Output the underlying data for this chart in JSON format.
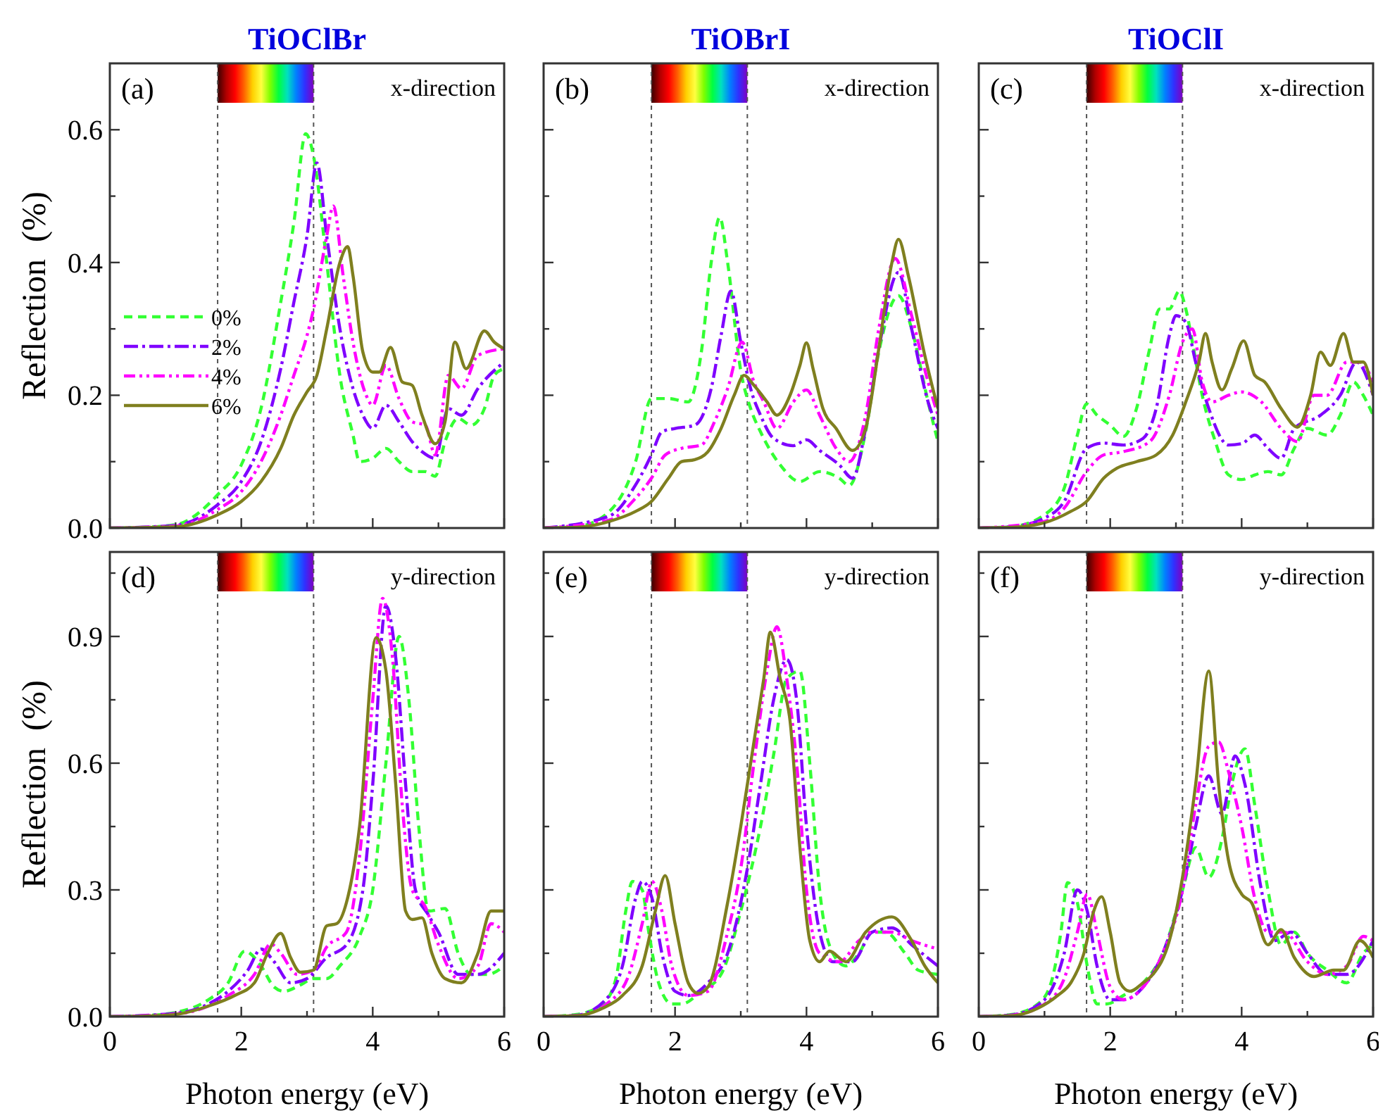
{
  "chart_data": [
    {
      "type": "line",
      "title": "TiOClBr",
      "ylabel": "Reflection  (%)",
      "annotations": [
        "(a)",
        "x-direction"
      ],
      "xlim": [
        0,
        6
      ],
      "ylim": [
        0,
        0.7
      ],
      "xticks": [
        0,
        {
          "value": 1,
          "label": null
        },
        2,
        {
          "value": 3,
          "label": null
        },
        4,
        {
          "value": 5,
          "label": null
        },
        6
      ],
      "yticks": [
        {
          "value": 0,
          "label": "0.0"
        },
        {
          "value": 0.1,
          "label": null
        },
        0.2,
        {
          "value": 0.3,
          "label": null
        },
        0.4,
        {
          "value": 0.5,
          "label": null
        },
        0.6
      ],
      "tick_labels": "y",
      "legend": "left",
      "grid": false,
      "ref_lines": [
        {
          "axis": "x",
          "value": 1.64,
          "color": "#555555",
          "line_style": "dashed"
        },
        {
          "axis": "x",
          "value": 3.1,
          "color": "#555555",
          "line_style": "dashed"
        }
      ],
      "series": [
        {
          "name": "0%",
          "color": "#33ff33",
          "line_style": "dashed",
          "x": [
            0,
            0.5,
            1,
            1.64,
            2,
            2.3,
            2.6,
            2.8,
            2.98,
            3.1,
            3.3,
            3.5,
            3.7,
            3.8,
            4,
            4.2,
            4.4,
            4.6,
            4.8,
            4.95,
            5.1,
            5.3,
            5.5,
            5.7,
            5.85,
            6
          ],
          "values": [
            0,
            0.001,
            0.005,
            0.05,
            0.095,
            0.18,
            0.34,
            0.46,
            0.594,
            0.56,
            0.4,
            0.23,
            0.14,
            0.1,
            0.105,
            0.12,
            0.1,
            0.085,
            0.085,
            0.078,
            0.13,
            0.165,
            0.155,
            0.18,
            0.23,
            0.24
          ]
        },
        {
          "name": "2%",
          "color": "#7f00ff",
          "line_style": "dashed",
          "x": [
            0,
            1,
            1.64,
            2,
            2.3,
            2.6,
            2.8,
            3,
            3.15,
            3.3,
            3.5,
            3.7,
            3.85,
            4,
            4.2,
            4.4,
            4.6,
            4.75,
            4.95,
            5.15,
            5.35,
            5.6,
            6
          ],
          "values": [
            0,
            0.004,
            0.035,
            0.07,
            0.13,
            0.24,
            0.34,
            0.44,
            0.55,
            0.44,
            0.3,
            0.21,
            0.17,
            0.15,
            0.185,
            0.16,
            0.13,
            0.115,
            0.105,
            0.18,
            0.17,
            0.21,
            0.25
          ]
        },
        {
          "name": "4%",
          "color": "#ff00ff",
          "line_style": "dashed",
          "x": [
            0,
            1,
            1.64,
            2,
            2.3,
            2.6,
            2.8,
            3,
            3.1,
            3.3,
            3.4,
            3.55,
            3.7,
            3.9,
            4,
            4.2,
            4.4,
            4.6,
            4.8,
            4.95,
            5.15,
            5.35,
            5.6,
            6
          ],
          "values": [
            0,
            0.003,
            0.028,
            0.055,
            0.1,
            0.17,
            0.23,
            0.29,
            0.33,
            0.44,
            0.485,
            0.38,
            0.28,
            0.2,
            0.185,
            0.245,
            0.195,
            0.16,
            0.155,
            0.11,
            0.23,
            0.21,
            0.26,
            0.27
          ]
        },
        {
          "name": "6%",
          "color": "#7f7f1f",
          "line_style": "solid",
          "x": [
            0,
            1,
            1.64,
            2,
            2.3,
            2.6,
            2.8,
            3,
            3.15,
            3.3,
            3.5,
            3.62,
            3.7,
            3.85,
            4,
            4.1,
            4.27,
            4.45,
            4.6,
            4.75,
            4.95,
            5.1,
            5.25,
            5.42,
            5.7,
            5.85,
            6
          ],
          "values": [
            0,
            0.002,
            0.02,
            0.04,
            0.07,
            0.12,
            0.17,
            0.205,
            0.23,
            0.3,
            0.4,
            0.424,
            0.38,
            0.265,
            0.235,
            0.235,
            0.272,
            0.22,
            0.215,
            0.17,
            0.127,
            0.16,
            0.28,
            0.24,
            0.297,
            0.28,
            0.27
          ]
        }
      ]
    },
    {
      "type": "line",
      "title": "TiOBrI",
      "annotations": [
        "(b)",
        "x-direction"
      ],
      "xlim": [
        0,
        6
      ],
      "ylim": [
        0,
        0.7
      ],
      "xticks": [
        0,
        {
          "value": 1,
          "label": null
        },
        2,
        {
          "value": 3,
          "label": null
        },
        4,
        {
          "value": 5,
          "label": null
        },
        6
      ],
      "yticks": [
        0,
        {
          "value": 0.1,
          "label": null
        },
        0.2,
        {
          "value": 0.3,
          "label": null
        },
        0.4,
        {
          "value": 0.5,
          "label": null
        },
        0.6
      ],
      "tick_labels": false,
      "grid": false,
      "ref_lines": [
        {
          "axis": "x",
          "value": 1.64,
          "color": "#555555",
          "line_style": "dashed"
        },
        {
          "axis": "x",
          "value": 3.1,
          "color": "#555555",
          "line_style": "dashed"
        }
      ],
      "series": [
        {
          "color": "#33ff33",
          "line_style": "dashed",
          "x": [
            0,
            0.5,
            1,
            1.4,
            1.64,
            1.9,
            2.2,
            2.4,
            2.55,
            2.68,
            2.8,
            3,
            3.15,
            3.3,
            3.6,
            3.9,
            4.2,
            4.5,
            4.65,
            4.9,
            5.1,
            5.4,
            5.6,
            5.85,
            6
          ],
          "values": [
            0,
            0.002,
            0.025,
            0.1,
            0.195,
            0.195,
            0.19,
            0.265,
            0.4,
            0.468,
            0.4,
            0.237,
            0.18,
            0.145,
            0.095,
            0.07,
            0.085,
            0.075,
            0.064,
            0.145,
            0.265,
            0.35,
            0.3,
            0.19,
            0.13
          ]
        },
        {
          "color": "#7f00ff",
          "line_style": "dashed",
          "x": [
            0,
            1,
            1.4,
            1.64,
            1.8,
            2,
            2.3,
            2.55,
            2.7,
            2.85,
            3,
            3.15,
            3.3,
            3.5,
            3.8,
            4,
            4.2,
            4.5,
            4.7,
            4.9,
            5.1,
            5.4,
            5.6,
            5.85,
            6
          ],
          "values": [
            0,
            0.018,
            0.065,
            0.11,
            0.145,
            0.15,
            0.155,
            0.21,
            0.29,
            0.357,
            0.28,
            0.21,
            0.17,
            0.135,
            0.124,
            0.133,
            0.117,
            0.095,
            0.075,
            0.15,
            0.27,
            0.385,
            0.3,
            0.19,
            0.15
          ]
        },
        {
          "color": "#ff00ff",
          "line_style": "dashed",
          "x": [
            0,
            1,
            1.4,
            1.64,
            1.85,
            2.1,
            2.4,
            2.6,
            2.8,
            3.02,
            3.2,
            3.35,
            3.55,
            3.8,
            4,
            4.2,
            4.45,
            4.65,
            4.9,
            5.1,
            5.35,
            5.6,
            5.85,
            6
          ],
          "values": [
            0,
            0.012,
            0.045,
            0.075,
            0.11,
            0.12,
            0.125,
            0.16,
            0.21,
            0.28,
            0.22,
            0.19,
            0.15,
            0.19,
            0.208,
            0.17,
            0.12,
            0.1,
            0.17,
            0.3,
            0.406,
            0.32,
            0.22,
            0.17
          ]
        },
        {
          "color": "#7f7f1f",
          "line_style": "solid",
          "x": [
            0,
            0.5,
            1,
            1.4,
            1.64,
            1.9,
            2.1,
            2.3,
            2.5,
            2.7,
            2.9,
            3.05,
            3.2,
            3.4,
            3.55,
            3.75,
            3.9,
            4,
            4.1,
            4.25,
            4.45,
            4.7,
            4.9,
            5.1,
            5.3,
            5.4,
            5.55,
            5.8,
            6
          ],
          "values": [
            0,
            0.001,
            0.01,
            0.025,
            0.04,
            0.075,
            0.1,
            0.103,
            0.115,
            0.15,
            0.2,
            0.23,
            0.215,
            0.19,
            0.17,
            0.2,
            0.245,
            0.279,
            0.24,
            0.18,
            0.15,
            0.117,
            0.15,
            0.27,
            0.4,
            0.435,
            0.38,
            0.26,
            0.18
          ]
        }
      ]
    },
    {
      "type": "line",
      "title": "TiOClI",
      "annotations": [
        "(c)",
        "x-direction"
      ],
      "xlim": [
        0,
        6
      ],
      "ylim": [
        0,
        0.7
      ],
      "xticks": [
        0,
        {
          "value": 1,
          "label": null
        },
        2,
        {
          "value": 3,
          "label": null
        },
        4,
        {
          "value": 5,
          "label": null
        },
        6
      ],
      "yticks": [
        0,
        {
          "value": 0.1,
          "label": null
        },
        0.2,
        {
          "value": 0.3,
          "label": null
        },
        0.4,
        {
          "value": 0.5,
          "label": null
        },
        0.6
      ],
      "tick_labels": false,
      "grid": false,
      "ref_lines": [
        {
          "axis": "x",
          "value": 1.64,
          "color": "#555555",
          "line_style": "dashed"
        },
        {
          "axis": "x",
          "value": 3.1,
          "color": "#555555",
          "line_style": "dashed"
        }
      ],
      "series": [
        {
          "color": "#33ff33",
          "line_style": "dashed",
          "x": [
            0,
            0.5,
            1,
            1.3,
            1.5,
            1.64,
            1.8,
            2,
            2.2,
            2.4,
            2.6,
            2.75,
            2.9,
            3.05,
            3.15,
            3.25,
            3.4,
            3.6,
            3.8,
            4,
            4.2,
            4.4,
            4.6,
            4.8,
            5,
            5.3,
            5.5,
            5.7,
            5.85,
            6
          ],
          "values": [
            0,
            0.002,
            0.02,
            0.06,
            0.14,
            0.187,
            0.17,
            0.155,
            0.138,
            0.18,
            0.27,
            0.33,
            0.33,
            0.357,
            0.33,
            0.28,
            0.2,
            0.13,
            0.08,
            0.073,
            0.08,
            0.085,
            0.08,
            0.12,
            0.15,
            0.14,
            0.17,
            0.22,
            0.2,
            0.17
          ]
        },
        {
          "color": "#7f00ff",
          "line_style": "dashed",
          "x": [
            0,
            0.5,
            1,
            1.3,
            1.64,
            1.9,
            2.2,
            2.5,
            2.7,
            2.9,
            3,
            3.15,
            3.3,
            3.5,
            3.8,
            4,
            4.2,
            4.4,
            4.6,
            4.8,
            5.2,
            5.5,
            5.75,
            6
          ],
          "values": [
            0,
            0.002,
            0.015,
            0.04,
            0.12,
            0.128,
            0.125,
            0.135,
            0.18,
            0.29,
            0.32,
            0.31,
            0.25,
            0.18,
            0.125,
            0.127,
            0.14,
            0.12,
            0.105,
            0.15,
            0.17,
            0.2,
            0.25,
            0.2
          ]
        },
        {
          "color": "#ff00ff",
          "line_style": "dashed",
          "x": [
            0,
            1,
            1.3,
            1.64,
            1.9,
            2.2,
            2.6,
            2.9,
            3.1,
            3.25,
            3.4,
            3.55,
            3.8,
            4,
            4.3,
            4.6,
            4.85,
            5.1,
            5.3,
            5.6,
            5.8,
            6
          ],
          "values": [
            0,
            0.01,
            0.03,
            0.085,
            0.11,
            0.115,
            0.13,
            0.2,
            0.28,
            0.3,
            0.22,
            0.19,
            0.2,
            0.205,
            0.19,
            0.15,
            0.13,
            0.2,
            0.2,
            0.25,
            0.25,
            0.22
          ]
        },
        {
          "color": "#7f7f1f",
          "line_style": "solid",
          "x": [
            0,
            0.5,
            1,
            1.4,
            1.64,
            1.9,
            2.1,
            2.4,
            2.7,
            2.95,
            3.15,
            3.35,
            3.45,
            3.55,
            3.7,
            3.85,
            4.03,
            4.2,
            4.35,
            4.6,
            4.85,
            5.05,
            5.2,
            5.35,
            5.55,
            5.7,
            5.85,
            6
          ],
          "values": [
            0,
            0.001,
            0.008,
            0.025,
            0.04,
            0.075,
            0.09,
            0.1,
            0.11,
            0.14,
            0.19,
            0.25,
            0.293,
            0.25,
            0.208,
            0.24,
            0.282,
            0.23,
            0.22,
            0.18,
            0.152,
            0.2,
            0.265,
            0.245,
            0.293,
            0.25,
            0.25,
            0.2
          ]
        }
      ]
    },
    {
      "type": "line",
      "xlabel": "Photon energy (eV)",
      "ylabel": "Reflection  (%)",
      "annotations": [
        "(d)",
        "y-direction"
      ],
      "xlim": [
        0,
        6
      ],
      "ylim": [
        0,
        1.1
      ],
      "xticks": [
        0,
        {
          "value": 1,
          "label": null
        },
        2,
        {
          "value": 3,
          "label": null
        },
        4,
        {
          "value": 5,
          "label": null
        },
        6
      ],
      "yticks": [
        {
          "value": 0,
          "label": "0.0"
        },
        {
          "value": 0.15,
          "label": null
        },
        0.3,
        {
          "value": 0.45,
          "label": null
        },
        0.6,
        {
          "value": 0.75,
          "label": null
        },
        0.9,
        {
          "value": 1.05,
          "label": null
        }
      ],
      "grid": false,
      "ref_lines": [
        {
          "axis": "x",
          "value": 1.64,
          "color": "#555555",
          "line_style": "dashed"
        },
        {
          "axis": "x",
          "value": 3.1,
          "color": "#555555",
          "line_style": "dashed"
        }
      ],
      "series": [
        {
          "color": "#33ff33",
          "line_style": "dashed",
          "x": [
            0,
            0.5,
            1,
            1.5,
            1.8,
            2.05,
            2.3,
            2.5,
            2.65,
            2.9,
            3.1,
            3.3,
            3.5,
            3.8,
            4,
            4.2,
            4.4,
            4.55,
            4.7,
            4.85,
            5.1,
            5.3,
            5.5,
            5.75,
            6
          ],
          "values": [
            0,
            0.002,
            0.01,
            0.04,
            0.08,
            0.155,
            0.12,
            0.07,
            0.06,
            0.075,
            0.09,
            0.09,
            0.12,
            0.19,
            0.3,
            0.6,
            0.9,
            0.75,
            0.45,
            0.25,
            0.256,
            0.15,
            0.1,
            0.1,
            0.12
          ]
        },
        {
          "color": "#7f00ff",
          "line_style": "dashed",
          "x": [
            0,
            1,
            1.5,
            1.8,
            2.1,
            2.3,
            2.5,
            2.75,
            3,
            3.3,
            3.6,
            3.85,
            4,
            4.2,
            4.35,
            4.5,
            4.65,
            4.85,
            5,
            5.3,
            5.6,
            6
          ],
          "values": [
            0,
            0.008,
            0.03,
            0.06,
            0.11,
            0.16,
            0.13,
            0.08,
            0.09,
            0.14,
            0.17,
            0.3,
            0.55,
            0.973,
            0.85,
            0.55,
            0.3,
            0.24,
            0.2,
            0.1,
            0.1,
            0.15
          ]
        },
        {
          "color": "#ff00ff",
          "line_style": "dashed",
          "x": [
            0,
            1,
            1.5,
            1.8,
            2.2,
            2.45,
            2.6,
            2.85,
            3.1,
            3.3,
            3.6,
            3.8,
            4,
            4.15,
            4.3,
            4.45,
            4.6,
            4.8,
            5,
            5.3,
            5.6,
            5.8,
            6
          ],
          "values": [
            0,
            0.006,
            0.025,
            0.05,
            0.1,
            0.172,
            0.15,
            0.1,
            0.11,
            0.165,
            0.2,
            0.38,
            0.75,
            0.99,
            0.85,
            0.5,
            0.3,
            0.26,
            0.17,
            0.09,
            0.12,
            0.22,
            0.2
          ]
        },
        {
          "color": "#7f7f1f",
          "line_style": "solid",
          "x": [
            0,
            0.5,
            1,
            1.5,
            1.9,
            2.2,
            2.4,
            2.6,
            2.75,
            2.9,
            3.1,
            3.3,
            3.45,
            3.6,
            3.8,
            4.05,
            4.2,
            4.35,
            4.5,
            4.6,
            4.75,
            4.9,
            5.1,
            5.35,
            5.6,
            5.8,
            6
          ],
          "values": [
            0,
            0.001,
            0.005,
            0.025,
            0.05,
            0.08,
            0.15,
            0.197,
            0.14,
            0.105,
            0.11,
            0.215,
            0.22,
            0.27,
            0.45,
            0.897,
            0.82,
            0.55,
            0.25,
            0.23,
            0.234,
            0.15,
            0.09,
            0.08,
            0.15,
            0.25,
            0.25
          ]
        }
      ]
    },
    {
      "type": "line",
      "xlabel": "Photon energy (eV)",
      "annotations": [
        "(e)",
        "y-direction"
      ],
      "xlim": [
        0,
        6
      ],
      "ylim": [
        0,
        1.1
      ],
      "xticks": [
        0,
        {
          "value": 1,
          "label": null
        },
        2,
        {
          "value": 3,
          "label": null
        },
        4,
        {
          "value": 5,
          "label": null
        },
        6
      ],
      "yticks": [
        0,
        {
          "value": 0.15,
          "label": null
        },
        0.3,
        {
          "value": 0.45,
          "label": null
        },
        0.6,
        {
          "value": 0.75,
          "label": null
        },
        0.9,
        {
          "value": 1.05,
          "label": null
        }
      ],
      "tick_labels": "x",
      "grid": false,
      "ref_lines": [
        {
          "axis": "x",
          "value": 1.64,
          "color": "#555555",
          "line_style": "dashed"
        },
        {
          "axis": "x",
          "value": 3.1,
          "color": "#555555",
          "line_style": "dashed"
        }
      ],
      "series": [
        {
          "color": "#33ff33",
          "line_style": "dashed",
          "x": [
            0,
            0.5,
            0.9,
            1.1,
            1.25,
            1.35,
            1.5,
            1.6,
            1.75,
            1.95,
            2.1,
            2.4,
            2.7,
            3,
            3.3,
            3.5,
            3.7,
            3.9,
            4.05,
            4.2,
            4.4,
            4.6,
            4.8,
            5,
            5.2,
            5.5,
            5.7,
            6
          ],
          "values": [
            0,
            0.005,
            0.03,
            0.09,
            0.25,
            0.32,
            0.3,
            0.2,
            0.08,
            0.03,
            0.03,
            0.06,
            0.1,
            0.25,
            0.45,
            0.62,
            0.8,
            0.818,
            0.6,
            0.3,
            0.15,
            0.12,
            0.15,
            0.2,
            0.2,
            0.15,
            0.11,
            0.1
          ]
        },
        {
          "color": "#7f00ff",
          "line_style": "dashed",
          "x": [
            0,
            0.5,
            1,
            1.2,
            1.4,
            1.5,
            1.65,
            1.8,
            2,
            2.2,
            2.5,
            2.8,
            3.1,
            3.3,
            3.5,
            3.7,
            3.85,
            4,
            4.2,
            4.4,
            4.7,
            5,
            5.3,
            5.6,
            6
          ],
          "values": [
            0,
            0.003,
            0.05,
            0.12,
            0.28,
            0.32,
            0.28,
            0.15,
            0.06,
            0.05,
            0.08,
            0.15,
            0.35,
            0.55,
            0.75,
            0.845,
            0.75,
            0.45,
            0.2,
            0.13,
            0.13,
            0.2,
            0.21,
            0.17,
            0.12
          ]
        },
        {
          "color": "#ff00ff",
          "line_style": "dashed",
          "x": [
            0,
            0.5,
            1,
            1.3,
            1.5,
            1.65,
            1.8,
            1.95,
            2.2,
            2.5,
            2.8,
            3,
            3.2,
            3.4,
            3.55,
            3.7,
            3.85,
            4,
            4.2,
            4.5,
            4.8,
            5,
            5.3,
            5.6,
            6
          ],
          "values": [
            0,
            0.002,
            0.035,
            0.1,
            0.22,
            0.32,
            0.25,
            0.12,
            0.05,
            0.06,
            0.2,
            0.35,
            0.6,
            0.82,
            0.923,
            0.8,
            0.6,
            0.3,
            0.15,
            0.13,
            0.18,
            0.2,
            0.2,
            0.18,
            0.16
          ]
        },
        {
          "color": "#7f7f1f",
          "line_style": "solid",
          "x": [
            0,
            0.5,
            0.9,
            1.2,
            1.5,
            1.7,
            1.85,
            2,
            2.2,
            2.35,
            2.5,
            2.8,
            3,
            3.2,
            3.35,
            3.45,
            3.6,
            3.75,
            3.9,
            4.05,
            4.2,
            4.35,
            4.6,
            4.9,
            5.3,
            5.6,
            5.8,
            6
          ],
          "values": [
            0,
            0.002,
            0.02,
            0.05,
            0.12,
            0.25,
            0.334,
            0.22,
            0.08,
            0.055,
            0.07,
            0.27,
            0.45,
            0.65,
            0.8,
            0.91,
            0.8,
            0.7,
            0.4,
            0.18,
            0.13,
            0.155,
            0.13,
            0.2,
            0.236,
            0.18,
            0.12,
            0.08
          ]
        }
      ]
    },
    {
      "type": "line",
      "xlabel": "Photon energy (eV)",
      "annotations": [
        "(f)",
        "y-direction"
      ],
      "xlim": [
        0,
        6
      ],
      "ylim": [
        0,
        1.1
      ],
      "xticks": [
        0,
        {
          "value": 1,
          "label": null
        },
        2,
        {
          "value": 3,
          "label": null
        },
        4,
        {
          "value": 5,
          "label": null
        },
        6
      ],
      "yticks": [
        0,
        {
          "value": 0.15,
          "label": null
        },
        0.3,
        {
          "value": 0.45,
          "label": null
        },
        0.6,
        {
          "value": 0.75,
          "label": null
        },
        0.9,
        {
          "value": 1.05,
          "label": null
        }
      ],
      "tick_labels": "x",
      "grid": false,
      "ref_lines": [
        {
          "axis": "x",
          "value": 1.64,
          "color": "#555555",
          "line_style": "dashed"
        },
        {
          "axis": "x",
          "value": 3.1,
          "color": "#555555",
          "line_style": "dashed"
        }
      ],
      "series": [
        {
          "color": "#33ff33",
          "line_style": "dashed",
          "x": [
            0,
            0.5,
            0.9,
            1.1,
            1.25,
            1.35,
            1.5,
            1.65,
            1.8,
            1.95,
            2.2,
            2.5,
            2.8,
            3.1,
            3.3,
            3.5,
            3.7,
            3.85,
            4.05,
            4.2,
            4.4,
            4.6,
            4.8,
            5,
            5.3,
            5.6,
            5.85,
            6
          ],
          "values": [
            0,
            0.005,
            0.03,
            0.08,
            0.2,
            0.317,
            0.27,
            0.12,
            0.03,
            0.03,
            0.05,
            0.08,
            0.15,
            0.3,
            0.4,
            0.33,
            0.42,
            0.55,
            0.634,
            0.5,
            0.3,
            0.17,
            0.2,
            0.15,
            0.11,
            0.08,
            0.15,
            0.17
          ]
        },
        {
          "color": "#7f00ff",
          "line_style": "dashed",
          "x": [
            0,
            0.5,
            1,
            1.3,
            1.5,
            1.65,
            1.8,
            2,
            2.2,
            2.5,
            2.8,
            3.1,
            3.3,
            3.5,
            3.7,
            3.9,
            4.05,
            4.3,
            4.5,
            4.75,
            5,
            5.3,
            5.6,
            6
          ],
          "values": [
            0,
            0.004,
            0.04,
            0.15,
            0.3,
            0.25,
            0.12,
            0.04,
            0.04,
            0.07,
            0.15,
            0.3,
            0.45,
            0.57,
            0.48,
            0.617,
            0.55,
            0.3,
            0.18,
            0.2,
            0.15,
            0.1,
            0.1,
            0.18
          ]
        },
        {
          "color": "#ff00ff",
          "line_style": "dashed",
          "x": [
            0,
            0.5,
            1,
            1.3,
            1.5,
            1.65,
            1.8,
            2,
            2.2,
            2.5,
            2.8,
            3.1,
            3.3,
            3.5,
            3.65,
            3.8,
            4,
            4.2,
            4.4,
            4.65,
            5,
            5.3,
            5.6,
            5.85,
            6
          ],
          "values": [
            0,
            0.003,
            0.03,
            0.09,
            0.2,
            0.29,
            0.2,
            0.07,
            0.04,
            0.07,
            0.15,
            0.3,
            0.5,
            0.64,
            0.65,
            0.58,
            0.45,
            0.28,
            0.2,
            0.2,
            0.13,
            0.1,
            0.12,
            0.19,
            0.18
          ]
        },
        {
          "color": "#7f7f1f",
          "line_style": "solid",
          "x": [
            0,
            0.5,
            0.9,
            1.2,
            1.4,
            1.6,
            1.75,
            1.87,
            2,
            2.15,
            2.3,
            2.5,
            2.65,
            2.9,
            3.1,
            3.3,
            3.5,
            3.65,
            3.8,
            4,
            4.15,
            4.4,
            4.6,
            4.8,
            5.1,
            5.4,
            5.55,
            5.8,
            6
          ],
          "values": [
            0,
            0.002,
            0.02,
            0.05,
            0.08,
            0.15,
            0.25,
            0.284,
            0.2,
            0.08,
            0.06,
            0.08,
            0.1,
            0.18,
            0.33,
            0.55,
            0.818,
            0.55,
            0.37,
            0.29,
            0.27,
            0.17,
            0.206,
            0.14,
            0.095,
            0.11,
            0.11,
            0.18,
            0.14
          ]
        }
      ]
    }
  ]
}
